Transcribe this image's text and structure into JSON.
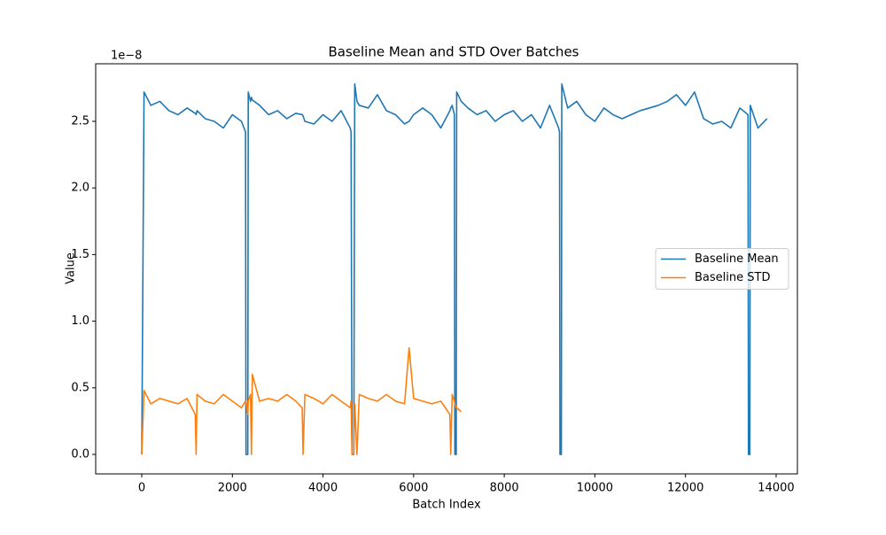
{
  "chart_data": {
    "type": "line",
    "title": "Baseline Mean and STD Over Batches",
    "x_label": "Batch Index",
    "y_label": "Value",
    "y_offset_label": "1e−8",
    "x": [
      0,
      50,
      200,
      400,
      600,
      800,
      1000,
      1180,
      1200,
      1220,
      1400,
      1600,
      1800,
      2000,
      2200,
      2290,
      2300,
      2340,
      2350,
      2400,
      2420,
      2440,
      2600,
      2800,
      3000,
      3200,
      3400,
      3540,
      3560,
      3600,
      3800,
      4000,
      4200,
      4400,
      4600,
      4620,
      4640,
      4680,
      4700,
      4750,
      4800,
      5000,
      5200,
      5400,
      5600,
      5800,
      5900,
      6000,
      6200,
      6400,
      6600,
      6800,
      6820,
      6850,
      6900,
      6910,
      6940,
      6950,
      7050,
      7200,
      7400,
      7600,
      7800,
      8000,
      8200,
      8400,
      8600,
      8800,
      9000,
      9200,
      9220,
      9230,
      9260,
      9270,
      9400,
      9600,
      9800,
      10000,
      10200,
      10400,
      10600,
      10800,
      11000,
      11200,
      11400,
      11600,
      11800,
      12000,
      12200,
      12400,
      12600,
      12800,
      13000,
      13200,
      13380,
      13390,
      13420,
      13430,
      13600,
      13800
    ],
    "series": [
      {
        "name": "Baseline Mean",
        "color": "#1f77b4",
        "values": [
          0,
          2.72,
          2.62,
          2.65,
          2.58,
          2.55,
          2.6,
          2.56,
          2.55,
          2.58,
          2.52,
          2.5,
          2.45,
          2.55,
          2.5,
          2.42,
          0,
          0,
          2.72,
          2.65,
          2.68,
          2.66,
          2.62,
          2.55,
          2.58,
          2.52,
          2.56,
          2.55,
          2.54,
          2.5,
          2.48,
          2.55,
          2.5,
          2.58,
          2.45,
          2.42,
          0,
          0,
          2.78,
          2.65,
          2.62,
          2.6,
          2.7,
          2.58,
          2.55,
          2.48,
          2.5,
          2.55,
          2.6,
          2.55,
          2.45,
          2.58,
          2.6,
          2.62,
          2.55,
          0,
          0,
          2.72,
          2.65,
          2.6,
          2.55,
          2.58,
          2.5,
          2.55,
          2.58,
          2.5,
          2.55,
          2.45,
          2.62,
          2.45,
          2.42,
          0,
          0,
          2.78,
          2.6,
          2.65,
          2.55,
          2.5,
          2.6,
          2.55,
          2.52,
          2.55,
          2.58,
          2.6,
          2.62,
          2.65,
          2.7,
          2.62,
          2.72,
          2.52,
          2.48,
          2.5,
          2.45,
          2.6,
          2.55,
          0,
          0,
          2.62,
          2.45,
          2.52
        ]
      },
      {
        "name": "Baseline STD",
        "color": "#ff7f0e",
        "values": [
          0,
          0.48,
          0.38,
          0.42,
          0.4,
          0.38,
          0.42,
          0.3,
          0,
          0.45,
          0.4,
          0.38,
          0.45,
          0.4,
          0.35,
          0.4,
          0.4,
          0.3,
          0.4,
          0.45,
          0,
          0.6,
          0.4,
          0.42,
          0.4,
          0.45,
          0.4,
          0.35,
          0,
          0.45,
          0.42,
          0.38,
          0.45,
          0.4,
          0.35,
          0.4,
          0,
          0,
          0.38,
          0,
          0.45,
          0.42,
          0.4,
          0.45,
          0.4,
          0.38,
          0.8,
          0.42,
          0.4,
          0.38,
          0.4,
          0.3,
          0,
          0.45,
          0.4,
          0.38,
          0.35,
          0.35,
          0.32,
          null,
          null,
          null,
          null,
          null,
          null,
          null,
          null,
          null,
          null,
          null,
          null,
          null,
          null,
          null,
          null,
          null,
          null,
          null,
          null,
          null,
          null,
          null,
          null,
          null,
          null,
          null,
          null,
          null,
          null,
          null,
          null,
          null,
          null,
          null,
          null,
          null,
          null,
          null,
          null,
          null
        ]
      }
    ],
    "xlim": [
      -1017,
      14470
    ],
    "xticks": [
      0,
      2000,
      4000,
      6000,
      8000,
      10000,
      12000,
      14000
    ],
    "ylim": [
      -0.146,
      2.932
    ],
    "yticks": [
      {
        "value": 0,
        "label": "0.0"
      },
      0.5,
      {
        "value": 1,
        "label": "1.0"
      },
      1.5,
      {
        "value": 2,
        "label": "2.0"
      },
      2.5
    ],
    "legend": "center right"
  }
}
